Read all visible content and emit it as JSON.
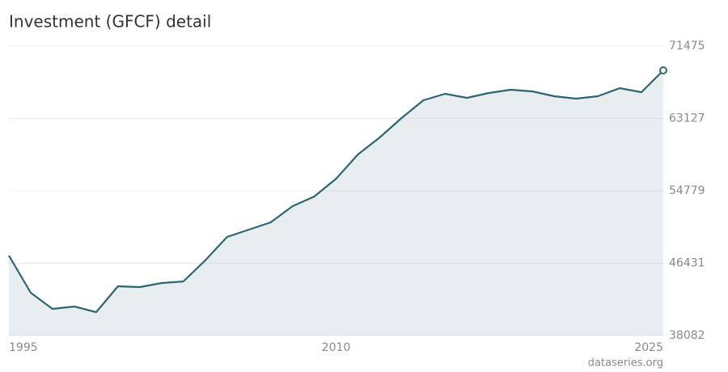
{
  "chart_data": {
    "type": "area",
    "title": "Investment (GFCF) detail",
    "source": "dataseries.org",
    "x": [
      1995,
      1996,
      1997,
      1998,
      1999,
      2000,
      2001,
      2002,
      2003,
      2004,
      2005,
      2006,
      2007,
      2008,
      2009,
      2010,
      2011,
      2012,
      2013,
      2014,
      2015,
      2016,
      2017,
      2018,
      2019,
      2020,
      2021,
      2022,
      2023,
      2024,
      2025
    ],
    "series": [
      {
        "color": "#2e6573",
        "values": [
          47317,
          43026,
          41160,
          41440,
          40787,
          43772,
          43679,
          44145,
          44332,
          46757,
          49462,
          50302,
          51141,
          53007,
          54126,
          56178,
          58977,
          60936,
          63175,
          65227,
          65973,
          65507,
          66066,
          66439,
          66253,
          65693,
          65413,
          65693,
          66626,
          66159,
          68678
        ]
      }
    ],
    "xlim": [
      1995,
      2025
    ],
    "xticks": [
      1995,
      2010,
      2025
    ],
    "ylim": [
      38082,
      71475
    ],
    "yticks": [
      38082,
      46431,
      54779,
      63127,
      71475
    ],
    "grid": true
  }
}
